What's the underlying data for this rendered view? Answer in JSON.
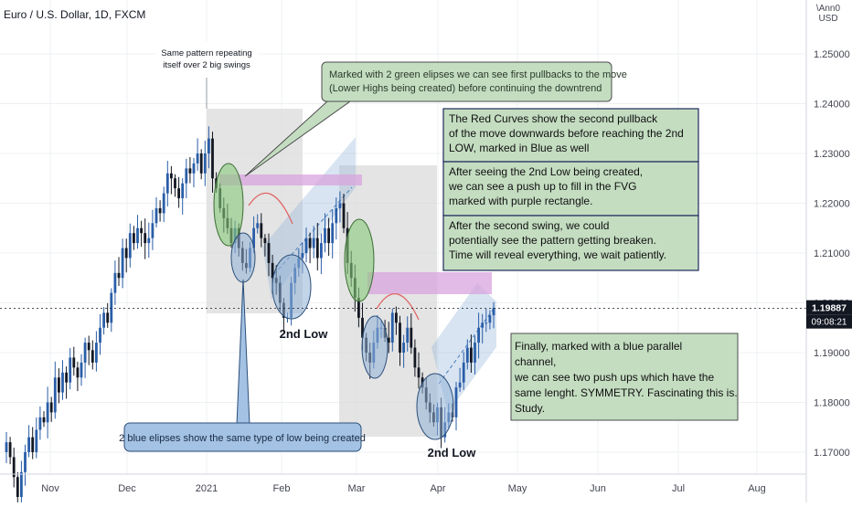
{
  "chart_data": {
    "type": "candlestick",
    "title": "Euro / U.S. Dollar, 1D, FXCM",
    "currency_label": [
      "\\Ann0",
      "USD"
    ],
    "yaxis_ticks": [
      "1.25000",
      "1.24000",
      "1.23000",
      "1.22000",
      "1.21000",
      "1.20000",
      "1.19000",
      "1.18000",
      "1.17000"
    ],
    "ylim": [
      1.1625,
      1.2575
    ],
    "xaxis_ticks": [
      "Nov",
      "Dec",
      "2021",
      "Feb",
      "Mar",
      "Apr",
      "May",
      "Jun",
      "Jul",
      "Aug"
    ],
    "last_price": "1.19887",
    "countdown": "09:08:21",
    "grid": true,
    "candle_colors": {
      "up": "#2a5ea8",
      "down": "#131722"
    },
    "approximate_daily_closes": [
      1.172,
      1.169,
      1.165,
      1.161,
      1.166,
      1.17,
      1.173,
      1.17,
      1.1745,
      1.177,
      1.176,
      1.18,
      1.178,
      1.185,
      1.182,
      1.186,
      1.184,
      1.189,
      1.187,
      1.185,
      1.188,
      1.192,
      1.1905,
      1.188,
      1.192,
      1.195,
      1.198,
      1.196,
      1.202,
      1.206,
      1.205,
      1.211,
      1.209,
      1.214,
      1.212,
      1.215,
      1.214,
      1.212,
      1.213,
      1.216,
      1.219,
      1.218,
      1.222,
      1.226,
      1.225,
      1.223,
      1.221,
      1.224,
      1.227,
      1.226,
      1.228,
      1.23,
      1.226,
      1.23,
      1.233,
      1.225,
      1.223,
      1.219,
      1.217,
      1.215,
      1.212,
      1.215,
      1.211,
      1.208,
      1.207,
      1.211,
      1.215,
      1.216,
      1.213,
      1.212,
      1.208,
      1.205,
      1.204,
      1.2,
      1.197,
      1.197,
      1.204,
      1.207,
      1.209,
      1.21,
      1.213,
      1.211,
      1.213,
      1.209,
      1.212,
      1.215,
      1.212,
      1.216,
      1.219,
      1.22,
      1.215,
      1.208,
      1.205,
      1.201,
      1.197,
      1.193,
      1.19,
      1.188,
      1.192,
      1.195,
      1.195,
      1.193,
      1.192,
      1.198,
      1.196,
      1.19,
      1.192,
      1.195,
      1.191,
      1.187,
      1.185,
      1.183,
      1.18,
      1.178,
      1.176,
      1.179,
      1.173,
      1.176,
      1.178,
      1.177,
      1.183,
      1.184,
      1.188,
      1.191,
      1.188,
      1.192,
      1.195,
      1.196,
      1.196,
      1.1975,
      1.199
    ]
  },
  "annotations": {
    "pattern_note": [
      "Same pattern repeating",
      "itself over 2 big swings"
    ],
    "green_note": [
      "Marked with 2 green elipses we can see first pullbacks to the move",
      "(Lower Highs being created) before continuing the downtrend"
    ],
    "red_curves_note": [
      "The Red Curves show the second pullback",
      "of the move downwards before reaching the 2nd",
      "LOW, marked in Blue as well"
    ],
    "fvg_note": [
      "After seeing the 2nd Low being created,",
      "we can see a push up to fill in the FVG",
      " marked with purple rectangle."
    ],
    "breaken_note": [
      "After the second swing, we could",
      " potentially see the pattern getting breaken.",
      " Time will reveal everything, we wait patiently."
    ],
    "blue_note": [
      "2 blue elipses show the same type of low being created"
    ],
    "symmetry_note": [
      "Finally, marked with a blue parallel",
      "channel,",
      "we can see two push ups which have the",
      "same lenght. SYMMETRY. Fascinating this is.",
      "Study."
    ],
    "second_low_label_1": "2nd Low",
    "second_low_label_2": "2nd Low"
  },
  "colors": {
    "green_fill": "#c4ddc1",
    "green_ellipse": "#88c97c",
    "blue_ellipse": "#8fb1d6",
    "purple_rect": "#d8a4de",
    "red_curve": "#e06666",
    "gray_box": "#d6d6d6",
    "blue_label_bg": "#a3c2e4"
  }
}
